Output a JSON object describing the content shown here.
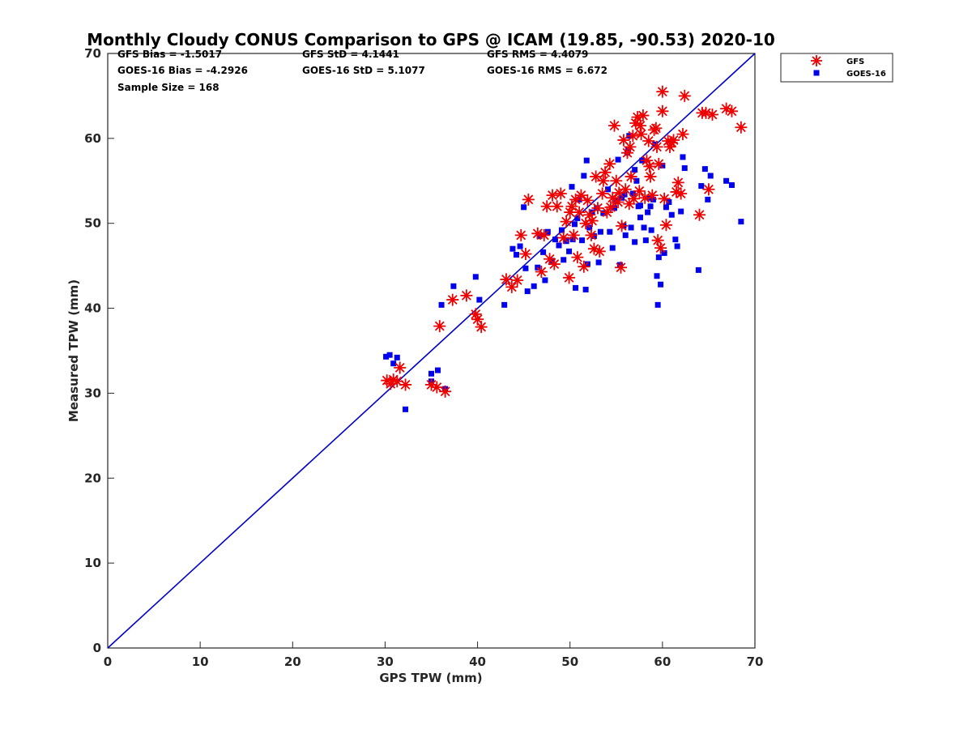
{
  "chart_data": {
    "type": "scatter",
    "title": "Monthly Cloudy CONUS Comparison to GPS @ ICAM (19.85, -90.53) 2020-10",
    "xlabel": "GPS TPW (mm)",
    "ylabel": "Measured TPW (mm)",
    "xlim": [
      0,
      70
    ],
    "ylim": [
      0,
      70
    ],
    "xticks": [
      "0",
      "10",
      "20",
      "30",
      "40",
      "50",
      "60",
      "70"
    ],
    "yticks": [
      "0",
      "10",
      "20",
      "30",
      "40",
      "50",
      "60",
      "70"
    ],
    "grid": false,
    "legend_position": "outside-top-right",
    "stats": {
      "gfs_bias": "GFS Bias = -1.5017",
      "gfs_std": "GFS StD = 4.1441",
      "gfs_rms": "GFS RMS = 4.4079",
      "goes_bias": "GOES-16 Bias = -4.2926",
      "goes_std": "GOES-16 StD = 5.1077",
      "goes_rms": "GOES-16 RMS = 6.672",
      "sample_size": "Sample Size = 168"
    },
    "reference_line": {
      "name": "1:1 line",
      "x": [
        0,
        70
      ],
      "y": [
        0,
        70
      ],
      "color": "#0000cc"
    },
    "series": [
      {
        "name": "GFS",
        "marker": "asterisk",
        "color": "#ee0000",
        "points": [
          [
            30.2,
            31.5
          ],
          [
            30.6,
            31.1
          ],
          [
            30.9,
            31.6
          ],
          [
            31.3,
            31.4
          ],
          [
            31.6,
            33.0
          ],
          [
            32.2,
            31.0
          ],
          [
            35.0,
            31.0
          ],
          [
            35.6,
            30.7
          ],
          [
            36.5,
            30.2
          ],
          [
            35.9,
            37.9
          ],
          [
            37.3,
            41.0
          ],
          [
            38.8,
            41.5
          ],
          [
            39.8,
            39.3
          ],
          [
            40.0,
            38.7
          ],
          [
            40.4,
            37.8
          ],
          [
            43.1,
            43.4
          ],
          [
            43.7,
            42.5
          ],
          [
            44.3,
            43.3
          ],
          [
            44.7,
            48.6
          ],
          [
            45.2,
            46.4
          ],
          [
            45.5,
            52.8
          ],
          [
            46.5,
            48.8
          ],
          [
            46.9,
            44.3
          ],
          [
            47.2,
            48.6
          ],
          [
            47.5,
            52.0
          ],
          [
            47.8,
            45.8
          ],
          [
            48.1,
            53.3
          ],
          [
            48.3,
            45.2
          ],
          [
            48.6,
            52.0
          ],
          [
            49.0,
            53.5
          ],
          [
            49.3,
            48.3
          ],
          [
            49.6,
            50.2
          ],
          [
            49.9,
            43.6
          ],
          [
            50.2,
            52.0
          ],
          [
            50.4,
            48.6
          ],
          [
            50.6,
            52.8
          ],
          [
            50.8,
            46.0
          ],
          [
            51.0,
            51.3
          ],
          [
            51.2,
            53.3
          ],
          [
            51.5,
            44.9
          ],
          [
            51.7,
            50.0
          ],
          [
            51.9,
            52.7
          ],
          [
            52.1,
            51.0
          ],
          [
            52.3,
            48.6
          ],
          [
            52.6,
            47.0
          ],
          [
            52.8,
            55.5
          ],
          [
            53.0,
            51.8
          ],
          [
            53.2,
            46.7
          ],
          [
            53.5,
            53.5
          ],
          [
            53.8,
            56.0
          ],
          [
            54.0,
            51.3
          ],
          [
            54.3,
            57.0
          ],
          [
            54.6,
            53.0
          ],
          [
            54.8,
            61.5
          ],
          [
            55.0,
            55.0
          ],
          [
            55.2,
            52.5
          ],
          [
            55.5,
            44.8
          ],
          [
            55.6,
            49.7
          ],
          [
            55.8,
            59.8
          ],
          [
            56.0,
            54.0
          ],
          [
            56.2,
            58.3
          ],
          [
            56.4,
            52.3
          ],
          [
            56.6,
            55.5
          ],
          [
            56.8,
            60.3
          ],
          [
            56.9,
            52.9
          ],
          [
            57.1,
            61.8
          ],
          [
            57.3,
            62.5
          ],
          [
            57.5,
            53.8
          ],
          [
            57.7,
            60.5
          ],
          [
            57.9,
            62.7
          ],
          [
            58.1,
            53.0
          ],
          [
            58.3,
            57.4
          ],
          [
            58.5,
            59.7
          ],
          [
            58.7,
            55.5
          ],
          [
            58.9,
            53.3
          ],
          [
            59.1,
            61.0
          ],
          [
            59.3,
            61.2
          ],
          [
            59.5,
            48.0
          ],
          [
            59.6,
            57.0
          ],
          [
            59.8,
            47.1
          ],
          [
            60.0,
            65.5
          ],
          [
            60.0,
            63.2
          ],
          [
            60.2,
            52.9
          ],
          [
            60.4,
            49.8
          ],
          [
            60.6,
            59.7
          ],
          [
            60.8,
            59.0
          ],
          [
            61.0,
            59.5
          ],
          [
            61.2,
            59.8
          ],
          [
            61.5,
            53.7
          ],
          [
            61.7,
            54.8
          ],
          [
            62.0,
            53.5
          ],
          [
            62.2,
            60.5
          ],
          [
            62.4,
            65.0
          ],
          [
            64.0,
            51.0
          ],
          [
            64.3,
            63.0
          ],
          [
            64.7,
            63.0
          ],
          [
            65.0,
            54.0
          ],
          [
            65.4,
            62.8
          ],
          [
            66.9,
            63.5
          ],
          [
            67.5,
            63.2
          ],
          [
            68.5,
            61.3
          ],
          [
            56.5,
            59.0
          ],
          [
            57.6,
            61.5
          ],
          [
            55.3,
            53.6
          ],
          [
            54.4,
            51.9
          ],
          [
            50.0,
            51.3
          ],
          [
            52.4,
            50.3
          ],
          [
            53.6,
            55.0
          ],
          [
            58.6,
            56.7
          ],
          [
            59.4,
            59.0
          ]
        ]
      },
      {
        "name": "GOES-16",
        "marker": "square",
        "color": "#0000ee",
        "points": [
          [
            30.1,
            34.3
          ],
          [
            30.5,
            34.5
          ],
          [
            30.9,
            33.5
          ],
          [
            31.3,
            34.2
          ],
          [
            32.2,
            28.1
          ],
          [
            35.0,
            32.3
          ],
          [
            35.0,
            31.4
          ],
          [
            35.7,
            32.7
          ],
          [
            36.1,
            40.4
          ],
          [
            36.5,
            30.5
          ],
          [
            37.4,
            42.6
          ],
          [
            39.8,
            43.7
          ],
          [
            40.2,
            41.0
          ],
          [
            42.9,
            40.4
          ],
          [
            43.8,
            47.0
          ],
          [
            44.2,
            46.3
          ],
          [
            44.6,
            47.3
          ],
          [
            45.0,
            51.9
          ],
          [
            45.2,
            44.7
          ],
          [
            45.4,
            42.0
          ],
          [
            46.1,
            42.6
          ],
          [
            46.5,
            44.8
          ],
          [
            46.7,
            48.5
          ],
          [
            47.3,
            43.3
          ],
          [
            47.6,
            49.0
          ],
          [
            48.0,
            45.6
          ],
          [
            48.4,
            48.1
          ],
          [
            48.8,
            47.4
          ],
          [
            49.1,
            49.2
          ],
          [
            49.3,
            45.7
          ],
          [
            49.6,
            47.9
          ],
          [
            49.9,
            46.7
          ],
          [
            50.2,
            54.3
          ],
          [
            50.3,
            48.1
          ],
          [
            50.6,
            42.4
          ],
          [
            50.8,
            50.6
          ],
          [
            51.0,
            52.8
          ],
          [
            51.3,
            48.0
          ],
          [
            51.5,
            55.6
          ],
          [
            51.7,
            42.2
          ],
          [
            51.9,
            45.2
          ],
          [
            52.1,
            49.5
          ],
          [
            52.4,
            51.3
          ],
          [
            52.6,
            48.5
          ],
          [
            52.9,
            51.8
          ],
          [
            53.1,
            45.4
          ],
          [
            53.6,
            51.2
          ],
          [
            54.1,
            54.0
          ],
          [
            54.3,
            49.0
          ],
          [
            54.6,
            47.1
          ],
          [
            54.8,
            51.8
          ],
          [
            55.0,
            52.6
          ],
          [
            55.2,
            57.5
          ],
          [
            55.4,
            45.1
          ],
          [
            55.6,
            53.0
          ],
          [
            55.8,
            49.7
          ],
          [
            56.0,
            48.6
          ],
          [
            56.2,
            58.3
          ],
          [
            56.4,
            60.3
          ],
          [
            56.6,
            49.5
          ],
          [
            56.8,
            53.5
          ],
          [
            57.0,
            47.8
          ],
          [
            57.2,
            55.0
          ],
          [
            57.4,
            52.0
          ],
          [
            57.6,
            50.7
          ],
          [
            57.8,
            57.4
          ],
          [
            58.0,
            49.5
          ],
          [
            58.2,
            48.0
          ],
          [
            58.4,
            51.3
          ],
          [
            58.6,
            53.0
          ],
          [
            58.8,
            49.2
          ],
          [
            59.0,
            52.8
          ],
          [
            59.2,
            59.3
          ],
          [
            59.4,
            43.8
          ],
          [
            59.5,
            40.4
          ],
          [
            59.6,
            46.0
          ],
          [
            59.8,
            42.8
          ],
          [
            60.0,
            56.8
          ],
          [
            60.2,
            46.5
          ],
          [
            60.4,
            51.9
          ],
          [
            60.7,
            52.5
          ],
          [
            61.0,
            51.0
          ],
          [
            61.4,
            48.1
          ],
          [
            61.6,
            47.3
          ],
          [
            62.0,
            51.4
          ],
          [
            62.2,
            57.8
          ],
          [
            62.4,
            56.5
          ],
          [
            63.9,
            44.5
          ],
          [
            64.2,
            54.4
          ],
          [
            64.6,
            56.4
          ],
          [
            64.9,
            52.8
          ],
          [
            65.2,
            55.6
          ],
          [
            66.9,
            55.0
          ],
          [
            67.5,
            54.5
          ],
          [
            68.5,
            50.2
          ],
          [
            56.3,
            58.7
          ],
          [
            57.0,
            56.3
          ],
          [
            53.3,
            49.0
          ],
          [
            51.8,
            57.4
          ],
          [
            55.9,
            53.4
          ],
          [
            58.7,
            52.0
          ],
          [
            50.5,
            49.9
          ],
          [
            47.1,
            46.6
          ],
          [
            57.6,
            52.1
          ]
        ]
      }
    ]
  }
}
